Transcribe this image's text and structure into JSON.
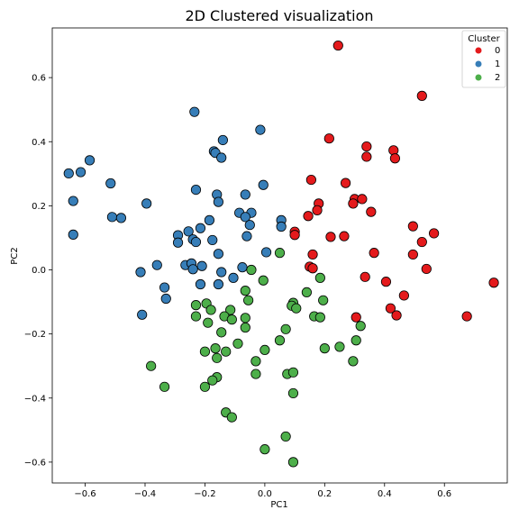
{
  "chart_data": {
    "type": "scatter",
    "title": "2D Clustered visualization",
    "xlabel": "PC1",
    "ylabel": "PC2",
    "xlim": [
      -0.71,
      0.81
    ],
    "ylim": [
      -0.665,
      0.755
    ],
    "xticks": [
      -0.6,
      -0.4,
      -0.2,
      0.0,
      0.2,
      0.4,
      0.6
    ],
    "yticks": [
      -0.6,
      -0.4,
      -0.2,
      0.0,
      0.2,
      0.4,
      0.6
    ],
    "xtick_labels": [
      "−0.6",
      "−0.4",
      "−0.2",
      "0.0",
      "0.2",
      "0.4",
      "0.6"
    ],
    "ytick_labels": [
      "−0.6",
      "−0.4",
      "−0.2",
      "0.0",
      "0.2",
      "0.4",
      "0.6"
    ],
    "grid": false,
    "legend": {
      "title": "Cluster",
      "position": "top-right",
      "entries": [
        "0",
        "1",
        "2"
      ]
    },
    "colors": [
      "#e41a1c",
      "#377eb8",
      "#4daf4a"
    ],
    "series": [
      {
        "name": "0",
        "points": [
          [
            0.245,
            0.7
          ],
          [
            0.525,
            0.543
          ],
          [
            0.215,
            0.41
          ],
          [
            0.34,
            0.385
          ],
          [
            0.43,
            0.373
          ],
          [
            0.34,
            0.353
          ],
          [
            0.435,
            0.348
          ],
          [
            0.155,
            0.281
          ],
          [
            0.27,
            0.271
          ],
          [
            0.3,
            0.221
          ],
          [
            0.325,
            0.221
          ],
          [
            0.295,
            0.207
          ],
          [
            0.18,
            0.207
          ],
          [
            0.175,
            0.186
          ],
          [
            0.355,
            0.181
          ],
          [
            0.145,
            0.168
          ],
          [
            0.495,
            0.136
          ],
          [
            0.1,
            0.119
          ],
          [
            0.1,
            0.109
          ],
          [
            0.565,
            0.114
          ],
          [
            0.22,
            0.103
          ],
          [
            0.265,
            0.105
          ],
          [
            0.525,
            0.087
          ],
          [
            0.365,
            0.053
          ],
          [
            0.16,
            0.048
          ],
          [
            0.495,
            0.048
          ],
          [
            0.15,
            0.01
          ],
          [
            0.16,
            0.005
          ],
          [
            0.54,
            0.003
          ],
          [
            0.335,
            -0.022
          ],
          [
            0.405,
            -0.037
          ],
          [
            0.765,
            -0.04
          ],
          [
            0.465,
            -0.08
          ],
          [
            0.42,
            -0.12
          ],
          [
            0.44,
            -0.142
          ],
          [
            0.305,
            -0.148
          ],
          [
            0.675,
            -0.145
          ]
        ]
      },
      {
        "name": "1",
        "points": [
          [
            -0.235,
            0.493
          ],
          [
            -0.015,
            0.437
          ],
          [
            -0.14,
            0.405
          ],
          [
            -0.17,
            0.37
          ],
          [
            -0.165,
            0.365
          ],
          [
            -0.145,
            0.35
          ],
          [
            -0.585,
            0.342
          ],
          [
            -0.655,
            0.301
          ],
          [
            -0.615,
            0.305
          ],
          [
            -0.515,
            0.27
          ],
          [
            -0.23,
            0.25
          ],
          [
            -0.005,
            0.265
          ],
          [
            -0.16,
            0.235
          ],
          [
            -0.065,
            0.235
          ],
          [
            -0.155,
            0.212
          ],
          [
            -0.395,
            0.207
          ],
          [
            -0.64,
            0.215
          ],
          [
            -0.085,
            0.178
          ],
          [
            -0.51,
            0.165
          ],
          [
            -0.045,
            0.178
          ],
          [
            -0.065,
            0.165
          ],
          [
            -0.48,
            0.162
          ],
          [
            -0.185,
            0.155
          ],
          [
            0.055,
            0.155
          ],
          [
            -0.05,
            0.14
          ],
          [
            0.055,
            0.135
          ],
          [
            -0.255,
            0.12
          ],
          [
            -0.215,
            0.13
          ],
          [
            -0.06,
            0.105
          ],
          [
            -0.29,
            0.108
          ],
          [
            -0.24,
            0.095
          ],
          [
            -0.23,
            0.087
          ],
          [
            -0.175,
            0.093
          ],
          [
            -0.29,
            0.085
          ],
          [
            -0.64,
            0.11
          ],
          [
            -0.155,
            0.05
          ],
          [
            0.005,
            0.055
          ],
          [
            -0.36,
            0.015
          ],
          [
            -0.265,
            0.015
          ],
          [
            -0.245,
            0.02
          ],
          [
            -0.24,
            0.002
          ],
          [
            -0.21,
            0.012
          ],
          [
            -0.075,
            0.008
          ],
          [
            -0.145,
            -0.007
          ],
          [
            -0.105,
            -0.025
          ],
          [
            -0.415,
            -0.007
          ],
          [
            -0.215,
            -0.045
          ],
          [
            -0.155,
            -0.045
          ],
          [
            -0.335,
            -0.055
          ],
          [
            -0.33,
            -0.09
          ],
          [
            -0.41,
            -0.14
          ]
        ]
      },
      {
        "name": "2",
        "points": [
          [
            0.05,
            0.053
          ],
          [
            -0.045,
            0.0
          ],
          [
            -0.005,
            -0.033
          ],
          [
            0.185,
            -0.025
          ],
          [
            -0.065,
            -0.065
          ],
          [
            0.14,
            -0.07
          ],
          [
            -0.055,
            -0.095
          ],
          [
            -0.23,
            -0.11
          ],
          [
            -0.195,
            -0.105
          ],
          [
            -0.18,
            -0.125
          ],
          [
            -0.115,
            -0.125
          ],
          [
            0.095,
            -0.103
          ],
          [
            0.09,
            -0.112
          ],
          [
            0.105,
            -0.12
          ],
          [
            0.195,
            -0.095
          ],
          [
            -0.23,
            -0.145
          ],
          [
            -0.135,
            -0.145
          ],
          [
            -0.11,
            -0.155
          ],
          [
            -0.065,
            -0.15
          ],
          [
            0.165,
            -0.145
          ],
          [
            0.185,
            -0.148
          ],
          [
            -0.19,
            -0.165
          ],
          [
            0.07,
            -0.185
          ],
          [
            -0.065,
            -0.18
          ],
          [
            0.32,
            -0.175
          ],
          [
            -0.145,
            -0.195
          ],
          [
            0.05,
            -0.22
          ],
          [
            0.305,
            -0.22
          ],
          [
            -0.09,
            -0.23
          ],
          [
            -0.165,
            -0.245
          ],
          [
            -0.2,
            -0.255
          ],
          [
            0.0,
            -0.25
          ],
          [
            -0.13,
            -0.255
          ],
          [
            0.2,
            -0.245
          ],
          [
            0.25,
            -0.24
          ],
          [
            -0.16,
            -0.275
          ],
          [
            -0.03,
            -0.285
          ],
          [
            0.295,
            -0.285
          ],
          [
            -0.38,
            -0.3
          ],
          [
            0.075,
            -0.325
          ],
          [
            0.095,
            -0.32
          ],
          [
            -0.03,
            -0.325
          ],
          [
            -0.16,
            -0.335
          ],
          [
            -0.175,
            -0.345
          ],
          [
            -0.2,
            -0.365
          ],
          [
            -0.335,
            -0.365
          ],
          [
            0.095,
            -0.385
          ],
          [
            -0.13,
            -0.445
          ],
          [
            -0.11,
            -0.46
          ],
          [
            0.07,
            -0.52
          ],
          [
            0.0,
            -0.56
          ],
          [
            0.095,
            -0.6
          ]
        ]
      }
    ]
  }
}
